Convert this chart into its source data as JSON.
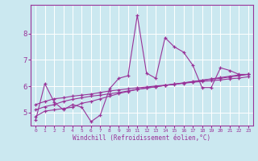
{
  "xlabel": "Windchill (Refroidissement éolien,°C)",
  "background_color": "#cbe8f0",
  "line_color": "#993399",
  "grid_color": "#ffffff",
  "xlim": [
    -0.5,
    23.5
  ],
  "ylim": [
    4.5,
    9.1
  ],
  "yticks": [
    5,
    6,
    7,
    8
  ],
  "xticks": [
    0,
    1,
    2,
    3,
    4,
    5,
    6,
    7,
    8,
    9,
    10,
    11,
    12,
    13,
    14,
    15,
    16,
    17,
    18,
    19,
    20,
    21,
    22,
    23
  ],
  "series": [
    [
      4.7,
      6.1,
      5.4,
      5.1,
      5.3,
      5.2,
      4.65,
      4.9,
      5.9,
      6.3,
      6.4,
      8.7,
      6.5,
      6.3,
      7.85,
      7.5,
      7.3,
      6.8,
      5.95,
      5.95,
      6.7,
      6.6,
      6.45,
      6.45
    ],
    [
      4.85,
      5.05,
      5.1,
      5.15,
      5.2,
      5.35,
      5.42,
      5.52,
      5.62,
      5.72,
      5.8,
      5.88,
      5.93,
      5.98,
      6.03,
      6.08,
      6.13,
      6.18,
      6.23,
      6.28,
      6.33,
      6.38,
      6.43,
      6.45
    ],
    [
      5.1,
      5.22,
      5.3,
      5.42,
      5.5,
      5.56,
      5.62,
      5.66,
      5.71,
      5.76,
      5.82,
      5.88,
      5.93,
      5.98,
      6.03,
      6.07,
      6.12,
      6.17,
      6.22,
      6.27,
      6.3,
      6.35,
      6.4,
      6.45
    ],
    [
      5.3,
      5.42,
      5.52,
      5.56,
      5.62,
      5.66,
      5.7,
      5.76,
      5.82,
      5.86,
      5.9,
      5.94,
      5.97,
      6.01,
      6.04,
      6.08,
      6.11,
      6.15,
      6.18,
      6.21,
      6.24,
      6.28,
      6.31,
      6.36
    ]
  ]
}
